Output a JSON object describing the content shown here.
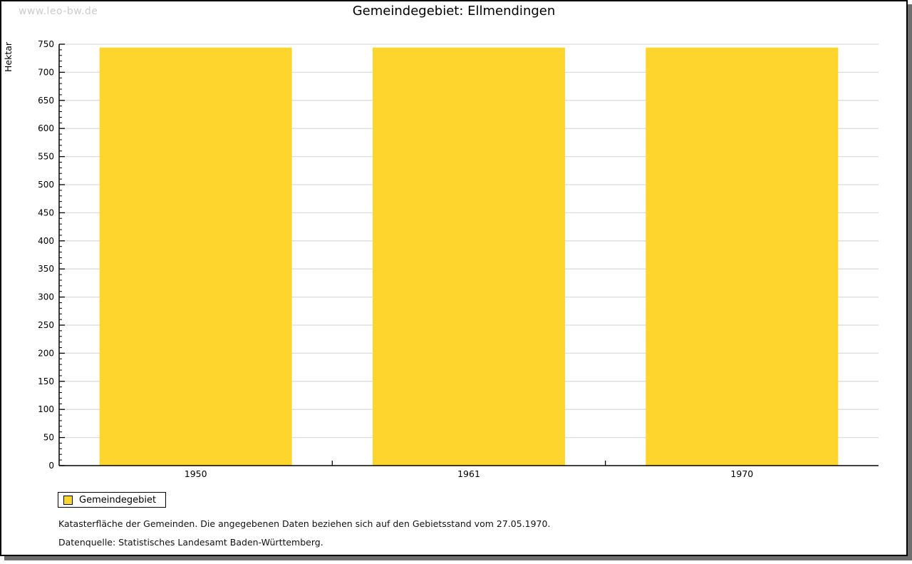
{
  "watermark": "www.leo-bw.de",
  "title": "Gemeindegebiet: Ellmendingen",
  "chart_data": {
    "type": "bar",
    "title": "Gemeindegebiet: Ellmendingen",
    "categories": [
      "1950",
      "1961",
      "1970"
    ],
    "series": [
      {
        "name": "Gemeindegebiet",
        "values": [
          744,
          744,
          744
        ]
      }
    ],
    "xlabel": "",
    "ylabel": "Hektar",
    "ylim": [
      0,
      750
    ],
    "ytick_step": 50,
    "ytick_minor_step": 10,
    "grid": true,
    "bar_color": "#fdd52d",
    "gridline_color": "#dcdcdc",
    "axis_color": "#000000",
    "legend_position": "bottom-left"
  },
  "legend": {
    "label": "Gemeindegebiet",
    "swatch_color": "#fdd52d"
  },
  "footer": {
    "line1": "Katasterfläche der Gemeinden. Die angegebenen Daten beziehen sich auf den Gebietsstand vom 27.05.1970.",
    "line2": "Datenquelle: Statistisches Landesamt Baden-Württemberg."
  }
}
